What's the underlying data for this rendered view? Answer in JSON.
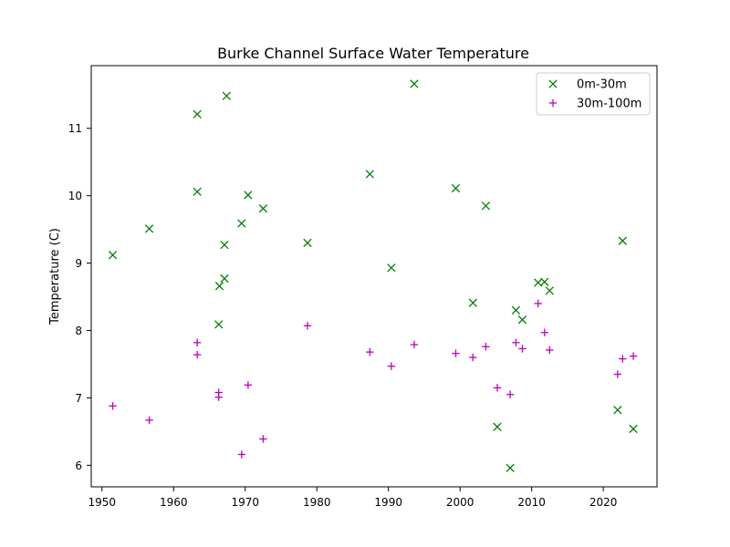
{
  "chart_data": {
    "type": "scatter",
    "title": "Burke Channel Surface Water Temperature",
    "xlabel": "",
    "ylabel": "Temperature (C)",
    "xlim": [
      1948.5,
      2027.5
    ],
    "ylim": [
      5.68,
      11.93
    ],
    "xticks": [
      1950,
      1960,
      1970,
      1980,
      1990,
      2000,
      2010,
      2020
    ],
    "yticks": [
      6,
      7,
      8,
      9,
      10,
      11
    ],
    "grid": false,
    "legend_position": "top-right",
    "series": [
      {
        "name": "0m-30m",
        "marker": "x",
        "color": "#008000",
        "points": [
          [
            1951.5,
            9.12
          ],
          [
            1956.6,
            9.51
          ],
          [
            1963.3,
            11.21
          ],
          [
            1963.3,
            10.06
          ],
          [
            1966.3,
            8.09
          ],
          [
            1966.4,
            8.66
          ],
          [
            1967.1,
            9.27
          ],
          [
            1967.1,
            8.77
          ],
          [
            1967.4,
            11.48
          ],
          [
            1969.5,
            9.59
          ],
          [
            1970.4,
            10.01
          ],
          [
            1972.5,
            9.81
          ],
          [
            1978.7,
            9.3
          ],
          [
            1987.4,
            10.32
          ],
          [
            1990.4,
            8.93
          ],
          [
            1993.6,
            11.66
          ],
          [
            1999.4,
            10.11
          ],
          [
            2001.8,
            8.41
          ],
          [
            2003.6,
            9.85
          ],
          [
            2005.2,
            6.57
          ],
          [
            2007.0,
            5.96
          ],
          [
            2007.8,
            8.3
          ],
          [
            2008.7,
            8.16
          ],
          [
            2010.9,
            8.71
          ],
          [
            2011.8,
            8.72
          ],
          [
            2012.5,
            8.59
          ],
          [
            2022.0,
            6.82
          ],
          [
            2022.7,
            9.33
          ],
          [
            2024.2,
            6.54
          ]
        ]
      },
      {
        "name": "30m-100m",
        "marker": "+",
        "color": "#bf00bf",
        "points": [
          [
            1951.5,
            6.88
          ],
          [
            1956.6,
            6.67
          ],
          [
            1963.3,
            7.82
          ],
          [
            1963.3,
            7.64
          ],
          [
            1966.3,
            7.08
          ],
          [
            1966.3,
            7.01
          ],
          [
            1969.5,
            6.16
          ],
          [
            1970.4,
            7.19
          ],
          [
            1972.5,
            6.39
          ],
          [
            1978.7,
            8.07
          ],
          [
            1987.4,
            7.68
          ],
          [
            1990.4,
            7.47
          ],
          [
            1993.6,
            7.79
          ],
          [
            1999.4,
            7.66
          ],
          [
            2001.8,
            7.6
          ],
          [
            2003.6,
            7.76
          ],
          [
            2005.2,
            7.15
          ],
          [
            2007.0,
            7.05
          ],
          [
            2007.8,
            7.82
          ],
          [
            2008.7,
            7.73
          ],
          [
            2010.9,
            8.4
          ],
          [
            2011.8,
            7.97
          ],
          [
            2012.5,
            7.71
          ],
          [
            2022.0,
            7.35
          ],
          [
            2022.7,
            7.58
          ],
          [
            2024.2,
            7.62
          ]
        ]
      }
    ]
  }
}
